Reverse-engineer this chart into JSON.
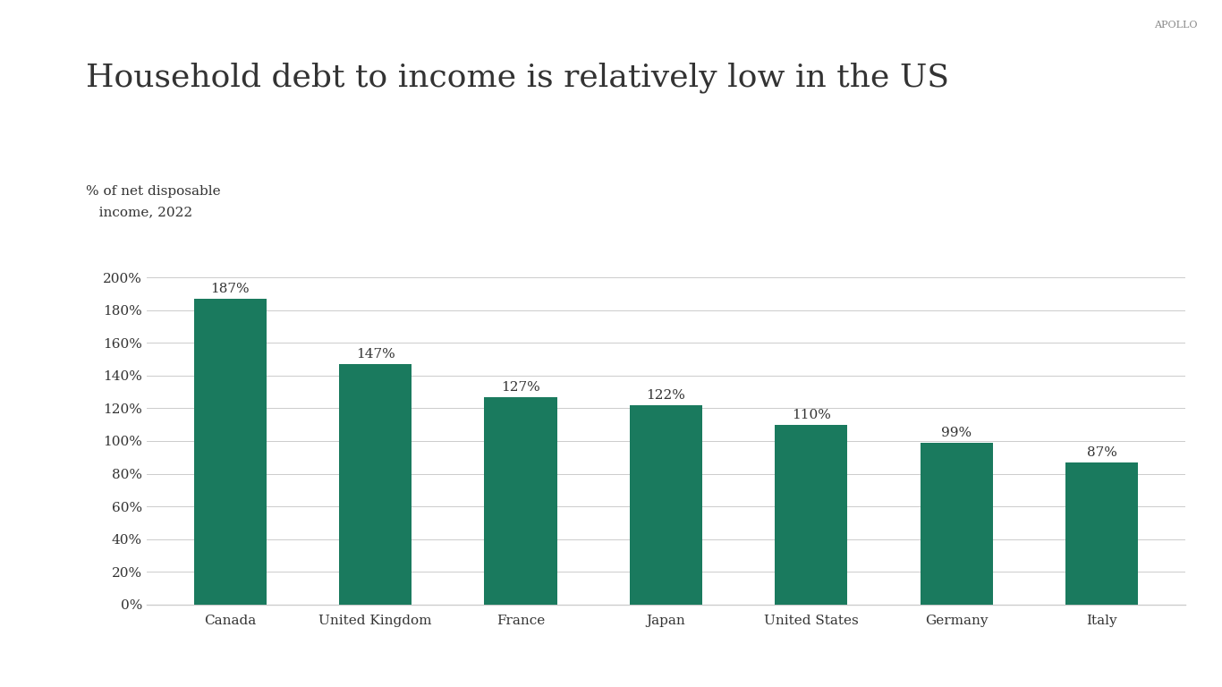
{
  "title": "Household debt to income is relatively low in the US",
  "ylabel_line1": "% of net disposable",
  "ylabel_line2": "   income, 2022",
  "watermark": "APOLLO",
  "categories": [
    "Canada",
    "United Kingdom",
    "France",
    "Japan",
    "United States",
    "Germany",
    "Italy"
  ],
  "values": [
    187,
    147,
    127,
    122,
    110,
    99,
    87
  ],
  "bar_color": "#1a7a5e",
  "label_color": "#333333",
  "background_color": "#ffffff",
  "ylim": [
    0,
    210
  ],
  "yticks": [
    0,
    20,
    40,
    60,
    80,
    100,
    120,
    140,
    160,
    180,
    200
  ],
  "title_fontsize": 26,
  "ylabel_fontsize": 11,
  "tick_fontsize": 11,
  "bar_label_fontsize": 11,
  "watermark_fontsize": 8,
  "axis_color": "#cccccc"
}
